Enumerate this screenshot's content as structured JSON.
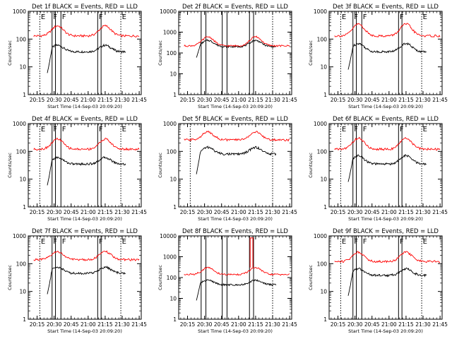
{
  "figure": {
    "footer": ""
  },
  "colors": {
    "events": "#000000",
    "lld": "#ff0000",
    "axis": "#000000"
  },
  "chart_data": [
    {
      "type": "line",
      "title": "Det 1f BLACK = Events, RED = LLD",
      "xlabel": "Start Time (14-Sep-03 20:09:20)",
      "ylabel": "Counts/sec",
      "xlim": [
        20.12,
        21.78
      ],
      "ylim": [
        1,
        1000
      ],
      "yticks": [
        "1",
        "10",
        "100",
        "1000"
      ],
      "xticks": [
        "20:15",
        "20:30",
        "20:45",
        "21:00",
        "21:15",
        "21:30",
        "21:45"
      ],
      "xtick_values": [
        20.25,
        20.5,
        20.75,
        21.0,
        21.25,
        21.5,
        21.75
      ],
      "markers": [
        {
          "label": "E",
          "x": 20.29,
          "style": "dotted"
        },
        {
          "label": "F",
          "x": 20.47,
          "style": "solid"
        },
        {
          "label": "F",
          "x": 20.6,
          "style": "solid"
        },
        {
          "label": "F",
          "x": 21.14,
          "style": "solid"
        },
        {
          "label": "E",
          "x": 21.48,
          "style": "dotted"
        }
      ],
      "extra_lines": [
        20.52,
        21.19
      ],
      "series": [
        {
          "name": "Events",
          "color": "#000000",
          "start": 20.4,
          "end": 21.55,
          "base": 60,
          "trough": 35,
          "dip": {
            "x": 20.4,
            "to": 6,
            "w": 0.07
          }
        },
        {
          "name": "LLD",
          "color": "#ff0000",
          "start": 20.2,
          "end": 21.75,
          "base": 300,
          "trough": 130
        }
      ]
    },
    {
      "type": "line",
      "title": "Det 2f BLACK = Events, RED = LLD",
      "xlabel": "Start Time (14-Sep-03 20:09:20)",
      "ylabel": "Counts/sec",
      "xlim": [
        20.12,
        21.78
      ],
      "ylim": [
        1,
        10000
      ],
      "yticks": [
        "1",
        "10",
        "100",
        "1000",
        "10000"
      ],
      "xticks": [
        "20:15",
        "20:30",
        "20:45",
        "21:00",
        "21:15",
        "21:30",
        "21:45"
      ],
      "xtick_values": [
        20.25,
        20.5,
        20.75,
        21.0,
        21.25,
        21.5,
        21.75
      ],
      "markers": [],
      "extra_lines": [
        20.45,
        20.52,
        20.76,
        20.83,
        21.16,
        21.22
      ],
      "dotted_lines": [
        21.5
      ],
      "series": [
        {
          "name": "Events",
          "color": "#000000",
          "start": 20.38,
          "end": 21.55,
          "base": 400,
          "trough": 200,
          "dip": {
            "x": 20.38,
            "to": 60,
            "w": 0.06
          }
        },
        {
          "name": "LLD",
          "color": "#ff0000",
          "start": 20.2,
          "end": 21.75,
          "base": 600,
          "trough": 220
        }
      ]
    },
    {
      "type": "line",
      "title": "Det 3f BLACK = Events, RED = LLD",
      "xlabel": "Start Time (14-Sep-03 20:09:20)",
      "ylabel": "Counts/sec",
      "xlim": [
        20.12,
        21.78
      ],
      "ylim": [
        1,
        1000
      ],
      "yticks": [
        "1",
        "10",
        "100",
        "1000"
      ],
      "xticks": [
        "20:15",
        "20:30",
        "20:45",
        "21:00",
        "21:15",
        "21:30",
        "21:45"
      ],
      "xtick_values": [
        20.25,
        20.5,
        20.75,
        21.0,
        21.25,
        21.5,
        21.75
      ],
      "markers": [
        {
          "label": "E",
          "x": 20.29,
          "style": "dotted"
        },
        {
          "label": "F",
          "x": 20.47,
          "style": "solid"
        },
        {
          "label": "F",
          "x": 20.6,
          "style": "solid"
        },
        {
          "label": "F",
          "x": 21.14,
          "style": "solid"
        },
        {
          "label": "E",
          "x": 21.48,
          "style": "dotted"
        }
      ],
      "extra_lines": [
        20.52,
        21.19
      ],
      "series": [
        {
          "name": "Events",
          "color": "#000000",
          "start": 20.4,
          "end": 21.55,
          "base": 70,
          "trough": 35,
          "dip": {
            "x": 20.4,
            "to": 8,
            "w": 0.07
          }
        },
        {
          "name": "LLD",
          "color": "#ff0000",
          "start": 20.2,
          "end": 21.75,
          "base": 350,
          "trough": 130
        }
      ]
    },
    {
      "type": "line",
      "title": "Det 4f BLACK = Events, RED = LLD",
      "xlabel": "Start Time (14-Sep-03 20:09:20)",
      "ylabel": "Counts/sec",
      "xlim": [
        20.12,
        21.78
      ],
      "ylim": [
        1,
        1000
      ],
      "yticks": [
        "1",
        "10",
        "100",
        "1000"
      ],
      "xticks": [
        "20:15",
        "20:30",
        "20:45",
        "21:00",
        "21:15",
        "21:30",
        "21:45"
      ],
      "xtick_values": [
        20.25,
        20.5,
        20.75,
        21.0,
        21.25,
        21.5,
        21.75
      ],
      "markers": [
        {
          "label": "E",
          "x": 20.29,
          "style": "dotted"
        },
        {
          "label": "F",
          "x": 20.47,
          "style": "solid"
        },
        {
          "label": "F",
          "x": 20.6,
          "style": "solid"
        },
        {
          "label": "F",
          "x": 21.14,
          "style": "solid"
        },
        {
          "label": "E",
          "x": 21.48,
          "style": "dotted"
        }
      ],
      "extra_lines": [
        20.52,
        21.19
      ],
      "series": [
        {
          "name": "Events",
          "color": "#000000",
          "start": 20.4,
          "end": 21.55,
          "base": 60,
          "trough": 35,
          "dip": {
            "x": 20.4,
            "to": 6,
            "w": 0.07
          }
        },
        {
          "name": "LLD",
          "color": "#ff0000",
          "start": 20.2,
          "end": 21.75,
          "base": 280,
          "trough": 120
        }
      ]
    },
    {
      "type": "line",
      "title": "Det 5f BLACK = Events, RED = LLD",
      "xlabel": "Start Time (14-Sep-03 20:09:20)",
      "ylabel": "Counts/sec",
      "xlim": [
        20.12,
        21.78
      ],
      "ylim": [
        1,
        1000
      ],
      "yticks": [
        "1",
        "10",
        "100",
        "1000"
      ],
      "xticks": [
        "20:15",
        "20:30",
        "20:45",
        "21:00",
        "21:15",
        "21:30",
        "21:45"
      ],
      "xtick_values": [
        20.25,
        20.5,
        20.75,
        21.0,
        21.25,
        21.5,
        21.75
      ],
      "markers": [],
      "extra_lines": [],
      "dotted_lines": [
        20.29,
        21.5
      ],
      "series": [
        {
          "name": "Events",
          "color": "#000000",
          "start": 20.38,
          "end": 21.55,
          "base": 140,
          "trough": 80,
          "dip": {
            "x": 20.38,
            "to": 15,
            "w": 0.06
          }
        },
        {
          "name": "LLD",
          "color": "#ff0000",
          "start": 20.2,
          "end": 21.75,
          "base": 500,
          "trough": 260
        }
      ]
    },
    {
      "type": "line",
      "title": "Det 6f BLACK = Events, RED = LLD",
      "xlabel": "Start Time (14-Sep-03 20:09:20)",
      "ylabel": "Counts/sec",
      "xlim": [
        20.12,
        21.78
      ],
      "ylim": [
        1,
        1000
      ],
      "yticks": [
        "1",
        "10",
        "100",
        "1000"
      ],
      "xticks": [
        "20:15",
        "20:30",
        "20:45",
        "21:00",
        "21:15",
        "21:30",
        "21:45"
      ],
      "xtick_values": [
        20.25,
        20.5,
        20.75,
        21.0,
        21.25,
        21.5,
        21.75
      ],
      "markers": [
        {
          "label": "E",
          "x": 20.29,
          "style": "dotted"
        },
        {
          "label": "F",
          "x": 20.47,
          "style": "solid"
        },
        {
          "label": "F",
          "x": 20.6,
          "style": "solid"
        },
        {
          "label": "F",
          "x": 21.14,
          "style": "solid"
        },
        {
          "label": "E",
          "x": 21.48,
          "style": "dotted"
        }
      ],
      "extra_lines": [
        20.52,
        21.19
      ],
      "series": [
        {
          "name": "Events",
          "color": "#000000",
          "start": 20.4,
          "end": 21.55,
          "base": 70,
          "trough": 35,
          "dip": {
            "x": 20.4,
            "to": 8,
            "w": 0.07
          }
        },
        {
          "name": "LLD",
          "color": "#ff0000",
          "start": 20.2,
          "end": 21.75,
          "base": 300,
          "trough": 120
        }
      ]
    },
    {
      "type": "line",
      "title": "Det 7f BLACK = Events, RED = LLD",
      "xlabel": "Start Time (14-Sep-03 20:09:20)",
      "ylabel": "Counts/sec",
      "xlim": [
        20.12,
        21.78
      ],
      "ylim": [
        1,
        1000
      ],
      "yticks": [
        "1",
        "10",
        "100",
        "1000"
      ],
      "xticks": [
        "20:15",
        "20:30",
        "20:45",
        "21:00",
        "21:15",
        "21:30",
        "21:45"
      ],
      "xtick_values": [
        20.25,
        20.5,
        20.75,
        21.0,
        21.25,
        21.5,
        21.75
      ],
      "markers": [
        {
          "label": "E",
          "x": 20.29,
          "style": "dotted"
        },
        {
          "label": "F",
          "x": 20.47,
          "style": "solid"
        },
        {
          "label": "F",
          "x": 20.6,
          "style": "solid"
        },
        {
          "label": "F",
          "x": 21.14,
          "style": "solid"
        },
        {
          "label": "E",
          "x": 21.48,
          "style": "dotted"
        }
      ],
      "extra_lines": [
        20.52,
        21.19
      ],
      "series": [
        {
          "name": "Events",
          "color": "#000000",
          "start": 20.4,
          "end": 21.55,
          "base": 75,
          "trough": 45,
          "dip": {
            "x": 20.4,
            "to": 8,
            "w": 0.07
          }
        },
        {
          "name": "LLD",
          "color": "#ff0000",
          "start": 20.2,
          "end": 21.75,
          "base": 270,
          "trough": 140
        }
      ]
    },
    {
      "type": "line",
      "title": "Det 8f BLACK = Events, RED = LLD",
      "xlabel": "Start Time (14-Sep-03 20:09:20)",
      "ylabel": "Counts/sec",
      "xlim": [
        20.12,
        21.78
      ],
      "ylim": [
        1,
        10000
      ],
      "yticks": [
        "1",
        "10",
        "100",
        "1000",
        "10000"
      ],
      "xticks": [
        "20:15",
        "20:30",
        "20:45",
        "21:00",
        "21:15",
        "21:30",
        "21:45"
      ],
      "xtick_values": [
        20.25,
        20.5,
        20.75,
        21.0,
        21.25,
        21.5,
        21.75
      ],
      "markers": [],
      "extra_lines": [
        20.45,
        20.52,
        20.76,
        20.83,
        21.16,
        21.22
      ],
      "dotted_lines": [
        21.5
      ],
      "spike": {
        "x": [
          21.17,
          21.21
        ],
        "value": 8000
      },
      "series": [
        {
          "name": "Events",
          "color": "#000000",
          "start": 20.38,
          "end": 21.55,
          "base": 75,
          "trough": 45,
          "dip": {
            "x": 20.38,
            "to": 8,
            "w": 0.06
          }
        },
        {
          "name": "LLD",
          "color": "#ff0000",
          "start": 20.2,
          "end": 21.75,
          "base": 300,
          "trough": 140
        }
      ]
    },
    {
      "type": "line",
      "title": "Det 9f BLACK = Events, RED = LLD",
      "xlabel": "Start Time (14-Sep-03 20:09:20)",
      "ylabel": "Counts/sec",
      "xlim": [
        20.12,
        21.78
      ],
      "ylim": [
        1,
        1000
      ],
      "yticks": [
        "1",
        "10",
        "100",
        "1000"
      ],
      "xticks": [
        "20:15",
        "20:30",
        "20:45",
        "21:00",
        "21:15",
        "21:30",
        "21:45"
      ],
      "xtick_values": [
        20.25,
        20.5,
        20.75,
        21.0,
        21.25,
        21.5,
        21.75
      ],
      "markers": [
        {
          "label": "E",
          "x": 20.29,
          "style": "dotted"
        },
        {
          "label": "F",
          "x": 20.47,
          "style": "solid"
        },
        {
          "label": "F",
          "x": 20.6,
          "style": "solid"
        },
        {
          "label": "F",
          "x": 21.14,
          "style": "solid"
        },
        {
          "label": "E",
          "x": 21.48,
          "style": "dotted"
        }
      ],
      "extra_lines": [
        20.52,
        21.19
      ],
      "series": [
        {
          "name": "Events",
          "color": "#000000",
          "start": 20.4,
          "end": 21.55,
          "base": 65,
          "trough": 38,
          "dip": {
            "x": 20.4,
            "to": 7,
            "w": 0.07
          }
        },
        {
          "name": "LLD",
          "color": "#ff0000",
          "start": 20.2,
          "end": 21.75,
          "base": 260,
          "trough": 120
        }
      ]
    }
  ]
}
